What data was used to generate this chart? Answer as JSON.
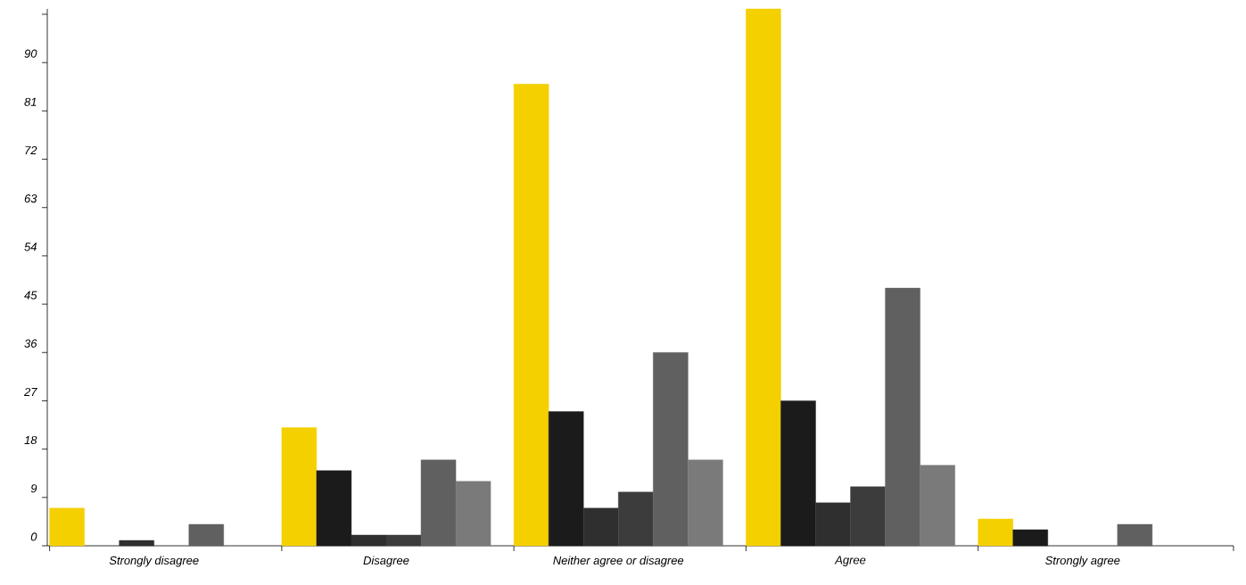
{
  "chart_data": {
    "type": "bar",
    "categories": [
      "Strongly disagree",
      "Disagree",
      "Neither agree or disagree",
      "Agree",
      "Strongly agree"
    ],
    "series": [
      {
        "color": "#f5d000",
        "values": [
          7,
          22,
          86,
          100,
          5
        ]
      },
      {
        "color": "#1b1b1b",
        "values": [
          0,
          14,
          25,
          27,
          3
        ]
      },
      {
        "color": "#2f2f2f",
        "values": [
          1,
          2,
          7,
          8,
          0
        ]
      },
      {
        "color": "#3c3c3c",
        "values": [
          0,
          2,
          10,
          11,
          0
        ]
      },
      {
        "color": "#606060",
        "values": [
          4,
          16,
          36,
          48,
          4
        ]
      },
      {
        "color": "#7a7a7a",
        "values": [
          0,
          12,
          16,
          15,
          0
        ]
      }
    ],
    "ylim": [
      0,
      100
    ],
    "yticks": [
      0,
      9,
      18,
      27,
      36,
      45,
      54,
      63,
      72,
      81,
      90,
      {
        "value": 99,
        "label": null
      }
    ]
  }
}
